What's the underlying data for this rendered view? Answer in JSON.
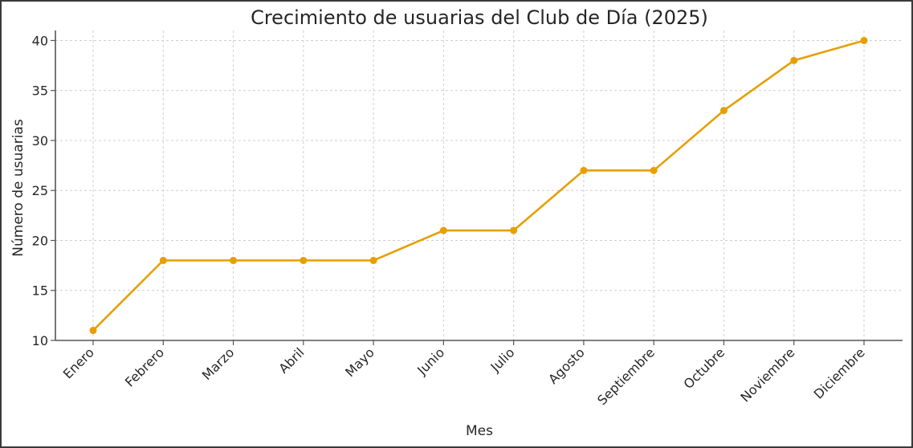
{
  "chart_data": {
    "type": "line",
    "title": "Crecimiento de usuarias del Club de Día (2025)",
    "xlabel": "Mes",
    "ylabel": "Número de usuarias",
    "categories": [
      "Enero",
      "Febrero",
      "Marzo",
      "Abril",
      "Mayo",
      "Junio",
      "Julio",
      "Agosto",
      "Septiembre",
      "Octubre",
      "Noviembre",
      "Diciembre"
    ],
    "series": [
      {
        "values": [
          11,
          18,
          18,
          18,
          18,
          21,
          21,
          27,
          27,
          33,
          38,
          40
        ]
      }
    ],
    "ylim": [
      10,
      41
    ],
    "yticks": [
      10,
      15,
      20,
      25,
      30,
      35,
      40
    ],
    "grid": true,
    "color": "#E69F00"
  }
}
